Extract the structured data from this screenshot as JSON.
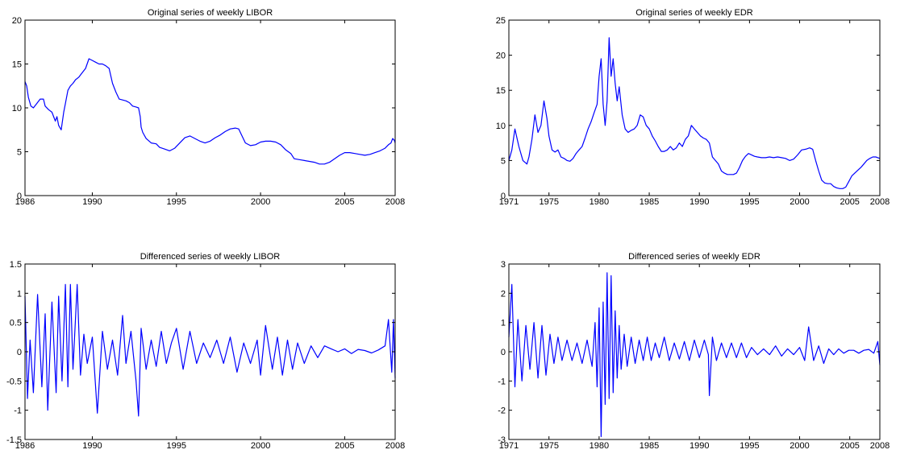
{
  "chart_data": [
    {
      "type": "line",
      "title": "Original series of weekly LIBOR",
      "xlabel": "",
      "ylabel": "",
      "xlim": [
        1986,
        2008
      ],
      "ylim": [
        0,
        20
      ],
      "x_ticks": [
        1986,
        1990,
        1995,
        2000,
        2005,
        2008
      ],
      "y_ticks": [
        0,
        5,
        10,
        15,
        20
      ],
      "grid": false,
      "color": "#0000ff",
      "series": [
        {
          "x": [
            1986.0,
            1986.1,
            1986.2,
            1986.35,
            1986.5,
            1986.7,
            1986.9,
            1987.1,
            1987.2,
            1987.4,
            1987.6,
            1987.8,
            1987.9,
            1988.0,
            1988.15,
            1988.3,
            1988.4,
            1988.55,
            1988.7,
            1988.85,
            1989.0,
            1989.2,
            1989.4,
            1989.6,
            1989.8,
            1990.0,
            1990.2,
            1990.4,
            1990.6,
            1990.8,
            1991.0,
            1991.2,
            1991.4,
            1991.6,
            1991.8,
            1992.0,
            1992.2,
            1992.4,
            1992.6,
            1992.75,
            1992.85,
            1992.9,
            1993.0,
            1993.2,
            1993.5,
            1993.8,
            1994.0,
            1994.3,
            1994.6,
            1994.9,
            1995.2,
            1995.5,
            1995.8,
            1996.1,
            1996.4,
            1996.7,
            1997.0,
            1997.3,
            1997.6,
            1997.9,
            1998.2,
            1998.5,
            1998.7,
            1998.9,
            1999.1,
            1999.4,
            1999.7,
            2000.0,
            2000.3,
            2000.6,
            2000.9,
            2001.2,
            2001.5,
            2001.8,
            2002.0,
            2002.3,
            2002.6,
            2002.9,
            2003.2,
            2003.5,
            2003.8,
            2004.1,
            2004.4,
            2004.7,
            2005.0,
            2005.3,
            2005.6,
            2005.9,
            2006.2,
            2006.5,
            2006.8,
            2007.1,
            2007.4,
            2007.6,
            2007.75,
            2007.85,
            2007.95,
            2008.0
          ],
          "y": [
            13.0,
            12.5,
            11.2,
            10.2,
            10.0,
            10.5,
            11.0,
            11.0,
            10.2,
            9.8,
            9.5,
            8.5,
            9.0,
            8.0,
            7.5,
            9.5,
            10.5,
            12.0,
            12.5,
            12.8,
            13.2,
            13.5,
            14.0,
            14.5,
            15.6,
            15.4,
            15.2,
            15.0,
            15.0,
            14.8,
            14.5,
            12.8,
            11.8,
            11.0,
            10.9,
            10.8,
            10.6,
            10.2,
            10.1,
            10.0,
            9.0,
            7.8,
            7.2,
            6.5,
            6.0,
            5.9,
            5.5,
            5.3,
            5.1,
            5.4,
            6.0,
            6.6,
            6.8,
            6.5,
            6.2,
            6.0,
            6.2,
            6.6,
            6.9,
            7.3,
            7.6,
            7.7,
            7.6,
            6.8,
            6.0,
            5.7,
            5.8,
            6.1,
            6.2,
            6.2,
            6.1,
            5.8,
            5.2,
            4.8,
            4.2,
            4.1,
            4.0,
            3.9,
            3.8,
            3.6,
            3.6,
            3.8,
            4.2,
            4.6,
            4.9,
            4.9,
            4.8,
            4.7,
            4.6,
            4.7,
            4.9,
            5.1,
            5.4,
            5.8,
            6.0,
            6.5,
            6.3,
            6.0
          ]
        }
      ]
    },
    {
      "type": "line",
      "title": "Original series of weekly EDR",
      "xlabel": "",
      "ylabel": "",
      "xlim": [
        1971,
        2008
      ],
      "ylim": [
        0,
        25
      ],
      "x_ticks": [
        1971,
        1975,
        1980,
        1985,
        1990,
        1995,
        2000,
        2005,
        2008
      ],
      "y_ticks": [
        0,
        5,
        10,
        15,
        20,
        25
      ],
      "grid": false,
      "color": "#0000ff",
      "series": [
        {
          "x": [
            1971.0,
            1971.3,
            1971.6,
            1972.0,
            1972.4,
            1972.8,
            1973.0,
            1973.3,
            1973.6,
            1973.9,
            1974.2,
            1974.5,
            1974.8,
            1975.0,
            1975.3,
            1975.6,
            1975.9,
            1976.2,
            1976.5,
            1976.8,
            1977.1,
            1977.4,
            1977.7,
            1978.0,
            1978.3,
            1978.6,
            1978.9,
            1979.2,
            1979.5,
            1979.8,
            1980.0,
            1980.2,
            1980.4,
            1980.6,
            1980.8,
            1981.0,
            1981.2,
            1981.4,
            1981.6,
            1981.8,
            1982.0,
            1982.3,
            1982.6,
            1982.9,
            1983.2,
            1983.5,
            1983.8,
            1984.1,
            1984.4,
            1984.7,
            1985.0,
            1985.3,
            1985.6,
            1985.9,
            1986.2,
            1986.5,
            1986.8,
            1987.1,
            1987.4,
            1987.7,
            1988.0,
            1988.3,
            1988.6,
            1988.9,
            1989.2,
            1989.5,
            1989.8,
            1990.1,
            1990.4,
            1990.7,
            1991.0,
            1991.3,
            1991.6,
            1991.9,
            1992.2,
            1992.5,
            1992.8,
            1993.1,
            1993.4,
            1993.7,
            1994.0,
            1994.3,
            1994.6,
            1994.9,
            1995.2,
            1995.5,
            1995.8,
            1996.2,
            1996.6,
            1997.0,
            1997.4,
            1997.8,
            1998.2,
            1998.6,
            1999.0,
            1999.4,
            1999.8,
            2000.2,
            2000.6,
            2001.0,
            2001.3,
            2001.6,
            2001.9,
            2002.2,
            2002.5,
            2002.8,
            2003.1,
            2003.4,
            2003.7,
            2004.0,
            2004.3,
            2004.6,
            2004.9,
            2005.2,
            2005.5,
            2005.8,
            2006.1,
            2006.4,
            2006.7,
            2007.0,
            2007.3,
            2007.6,
            2007.8,
            2008.0
          ],
          "y": [
            5.0,
            6.5,
            9.5,
            7.0,
            5.0,
            4.5,
            5.5,
            8.0,
            11.5,
            9.0,
            10.0,
            13.5,
            11.0,
            8.5,
            6.5,
            6.2,
            6.5,
            5.5,
            5.3,
            5.0,
            4.9,
            5.3,
            6.0,
            6.5,
            7.0,
            8.2,
            9.5,
            10.5,
            11.8,
            13.0,
            17.0,
            19.5,
            13.0,
            10.0,
            13.5,
            22.5,
            17.0,
            19.5,
            16.0,
            13.5,
            15.5,
            11.5,
            9.5,
            9.0,
            9.3,
            9.5,
            10.0,
            11.5,
            11.2,
            10.0,
            9.5,
            8.5,
            7.8,
            7.0,
            6.3,
            6.3,
            6.5,
            7.0,
            6.5,
            6.8,
            7.5,
            7.0,
            8.0,
            8.5,
            10.0,
            9.5,
            9.0,
            8.5,
            8.2,
            8.0,
            7.5,
            5.5,
            5.0,
            4.5,
            3.5,
            3.2,
            3.0,
            3.0,
            3.0,
            3.2,
            4.0,
            5.0,
            5.6,
            6.0,
            5.8,
            5.6,
            5.5,
            5.4,
            5.4,
            5.5,
            5.4,
            5.5,
            5.4,
            5.3,
            5.0,
            5.2,
            5.8,
            6.5,
            6.6,
            6.8,
            6.6,
            5.0,
            3.5,
            2.2,
            1.8,
            1.7,
            1.7,
            1.3,
            1.1,
            1.0,
            1.0,
            1.2,
            2.0,
            2.8,
            3.2,
            3.6,
            4.0,
            4.5,
            5.0,
            5.3,
            5.5,
            5.5,
            5.4,
            5.3
          ]
        }
      ]
    },
    {
      "type": "line",
      "title": "Differenced series of weekly LIBOR",
      "xlabel": "",
      "ylabel": "",
      "xlim": [
        1986,
        2008
      ],
      "ylim": [
        -1.5,
        1.5
      ],
      "x_ticks": [
        1986,
        1990,
        1995,
        2000,
        2005,
        2008
      ],
      "y_ticks": [
        -1.5,
        -1,
        -0.5,
        0,
        0.5,
        1,
        1.5
      ],
      "grid": false,
      "color": "#0000ff",
      "series": [
        {
          "x": [
            1986.0,
            1986.15,
            1986.3,
            1986.5,
            1986.75,
            1987.0,
            1987.2,
            1987.35,
            1987.6,
            1987.85,
            1988.0,
            1988.2,
            1988.4,
            1988.55,
            1988.7,
            1988.85,
            1989.1,
            1989.3,
            1989.5,
            1989.7,
            1990.0,
            1990.3,
            1990.6,
            1990.9,
            1991.2,
            1991.5,
            1991.8,
            1992.0,
            1992.3,
            1992.6,
            1992.75,
            1992.9,
            1993.2,
            1993.5,
            1993.8,
            1994.1,
            1994.4,
            1994.7,
            1995.0,
            1995.4,
            1995.8,
            1996.2,
            1996.6,
            1997.0,
            1997.4,
            1997.8,
            1998.2,
            1998.6,
            1999.0,
            1999.4,
            1999.8,
            2000.0,
            2000.3,
            2000.7,
            2001.0,
            2001.3,
            2001.6,
            2001.9,
            2002.2,
            2002.6,
            2003.0,
            2003.4,
            2003.8,
            2004.2,
            2004.6,
            2005.0,
            2005.4,
            2005.8,
            2006.2,
            2006.6,
            2007.0,
            2007.4,
            2007.6,
            2007.8,
            2007.9,
            2008.0
          ],
          "y": [
            0.95,
            -0.8,
            0.2,
            -0.7,
            0.98,
            -0.6,
            0.65,
            -1.0,
            0.85,
            -0.7,
            0.95,
            -0.5,
            1.15,
            -0.6,
            1.15,
            -0.3,
            1.15,
            -0.4,
            0.3,
            -0.2,
            0.25,
            -1.05,
            0.35,
            -0.3,
            0.2,
            -0.4,
            0.62,
            -0.2,
            0.35,
            -0.5,
            -1.1,
            0.4,
            -0.3,
            0.2,
            -0.25,
            0.35,
            -0.2,
            0.15,
            0.4,
            -0.3,
            0.35,
            -0.2,
            0.15,
            -0.1,
            0.2,
            -0.2,
            0.25,
            -0.35,
            0.15,
            -0.2,
            0.2,
            -0.4,
            0.45,
            -0.3,
            0.25,
            -0.4,
            0.2,
            -0.3,
            0.15,
            -0.2,
            0.1,
            -0.1,
            0.1,
            0.05,
            0.0,
            0.05,
            -0.03,
            0.04,
            0.02,
            -0.02,
            0.03,
            0.1,
            0.55,
            -0.35,
            0.55,
            -0.45
          ]
        }
      ]
    },
    {
      "type": "line",
      "title": "Differenced series of weekly EDR",
      "xlabel": "",
      "ylabel": "",
      "xlim": [
        1971,
        2008
      ],
      "ylim": [
        -3,
        3
      ],
      "x_ticks": [
        1971,
        1975,
        1980,
        1985,
        1990,
        1995,
        2000,
        2005,
        2008
      ],
      "y_ticks": [
        -3,
        -2,
        -1,
        0,
        1,
        2,
        3
      ],
      "grid": false,
      "color": "#0000ff",
      "series": [
        {
          "x": [
            1971.0,
            1971.3,
            1971.6,
            1971.9,
            1972.3,
            1972.7,
            1973.1,
            1973.5,
            1973.9,
            1974.3,
            1974.7,
            1975.1,
            1975.5,
            1975.9,
            1976.3,
            1976.8,
            1977.3,
            1977.8,
            1978.3,
            1978.8,
            1979.3,
            1979.6,
            1979.8,
            1980.0,
            1980.2,
            1980.4,
            1980.6,
            1980.8,
            1981.0,
            1981.2,
            1981.4,
            1981.6,
            1981.8,
            1982.0,
            1982.2,
            1982.5,
            1982.8,
            1983.2,
            1983.6,
            1984.0,
            1984.4,
            1984.8,
            1985.2,
            1985.6,
            1986.0,
            1986.5,
            1987.0,
            1987.5,
            1988.0,
            1988.5,
            1989.0,
            1989.5,
            1990.0,
            1990.5,
            1990.9,
            1991.0,
            1991.3,
            1991.7,
            1992.2,
            1992.7,
            1993.2,
            1993.7,
            1994.2,
            1994.7,
            1995.2,
            1995.8,
            1996.4,
            1997.0,
            1997.6,
            1998.2,
            1998.8,
            1999.4,
            2000.0,
            2000.5,
            2000.9,
            2001.4,
            2001.9,
            2002.4,
            2002.9,
            2003.4,
            2003.9,
            2004.4,
            2004.9,
            2005.4,
            2005.9,
            2006.4,
            2006.9,
            2007.4,
            2007.8,
            2008.0
          ],
          "y": [
            0.5,
            2.3,
            -1.2,
            1.1,
            -1.0,
            0.9,
            -0.6,
            1.0,
            -0.9,
            0.9,
            -0.8,
            0.6,
            -0.4,
            0.5,
            -0.3,
            0.4,
            -0.3,
            0.3,
            -0.4,
            0.4,
            -0.5,
            1.0,
            -1.2,
            1.5,
            -2.9,
            1.7,
            -1.8,
            2.7,
            -1.6,
            2.6,
            -1.4,
            1.4,
            -0.9,
            0.9,
            -0.6,
            0.6,
            -0.5,
            0.5,
            -0.4,
            0.4,
            -0.3,
            0.5,
            -0.3,
            0.3,
            -0.2,
            0.5,
            -0.3,
            0.3,
            -0.25,
            0.35,
            -0.3,
            0.4,
            -0.2,
            0.4,
            -0.1,
            -1.5,
            0.5,
            -0.3,
            0.3,
            -0.2,
            0.3,
            -0.2,
            0.3,
            -0.2,
            0.15,
            -0.1,
            0.1,
            -0.1,
            0.2,
            -0.15,
            0.1,
            -0.1,
            0.15,
            -0.3,
            0.85,
            -0.3,
            0.2,
            -0.4,
            0.1,
            -0.1,
            0.1,
            -0.05,
            0.05,
            0.05,
            -0.05,
            0.05,
            0.08,
            -0.05,
            0.35,
            -0.45
          ]
        }
      ]
    }
  ]
}
